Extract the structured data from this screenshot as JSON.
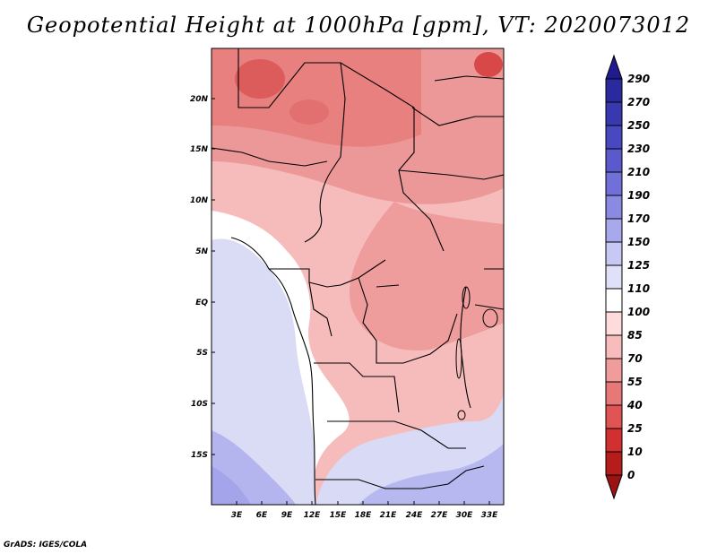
{
  "title": "Geopotential Height at 1000hPa [gpm], VT: 2020073012",
  "credit": "GrADS: IGES/COLA",
  "map": {
    "variable": "Geopotential Height",
    "level": "1000hPa",
    "units": "gpm",
    "valid_time": "2020073012",
    "lon_labels": [
      "3E",
      "6E",
      "9E",
      "12E",
      "15E",
      "18E",
      "21E",
      "24E",
      "27E",
      "30E",
      "33E"
    ],
    "lat_labels": [
      "20N",
      "15N",
      "10N",
      "5N",
      "EQ",
      "5S",
      "10S",
      "15S"
    ]
  },
  "colorbar": {
    "labels": [
      "290",
      "270",
      "250",
      "230",
      "210",
      "190",
      "170",
      "150",
      "125",
      "110",
      "100",
      "85",
      "70",
      "55",
      "40",
      "25",
      "10",
      "0"
    ],
    "colors": [
      "#1f1a8e",
      "#2a2a9e",
      "#3838b0",
      "#4848c0",
      "#5a5acc",
      "#7070d8",
      "#8a8ae2",
      "#a8a8ec",
      "#c8c8f4",
      "#e0e0f8",
      "#ffffff",
      "#ffdcdc",
      "#f8bcbc",
      "#f09c9c",
      "#e87878",
      "#e05454",
      "#d03030",
      "#b51c1c",
      "#9a1212"
    ]
  }
}
